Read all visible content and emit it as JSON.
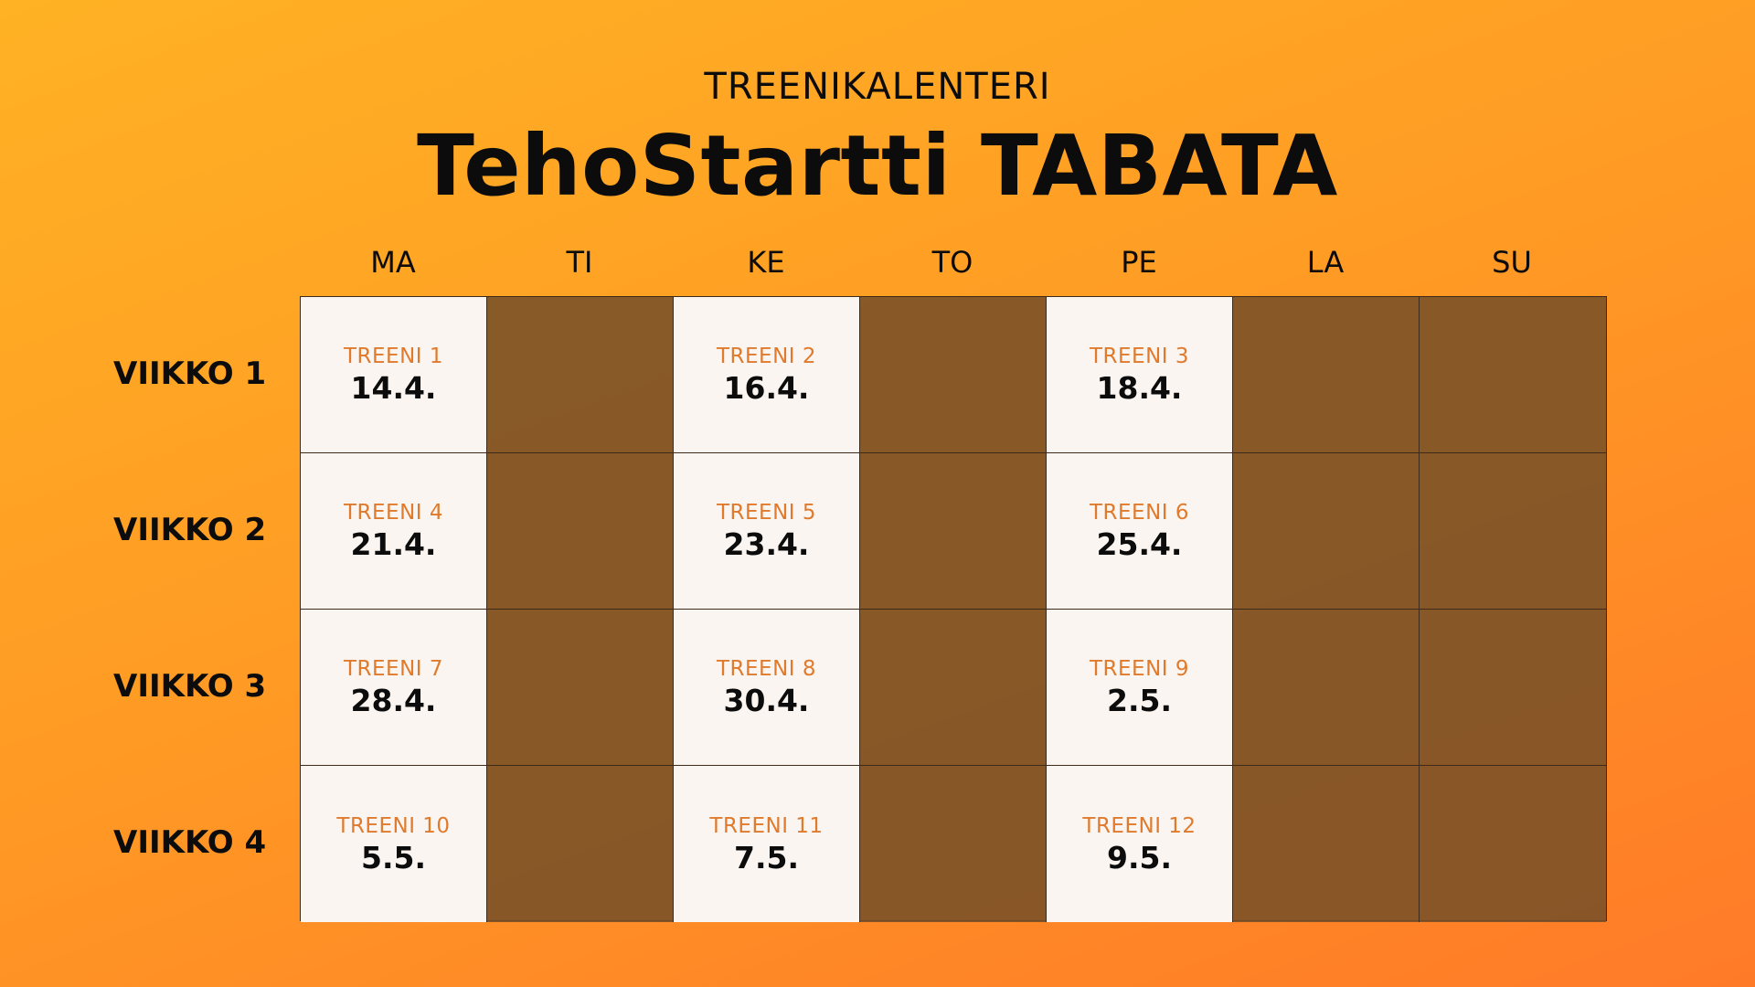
{
  "header": {
    "eyebrow": "TREENIKALENTERI",
    "title": "TehoStartti TABATA"
  },
  "days": [
    "MA",
    "TI",
    "KE",
    "TO",
    "PE",
    "LA",
    "SU"
  ],
  "weeks": [
    {
      "label": "VIIKKO 1",
      "cells": [
        {
          "label": "TREENI 1",
          "date": "14.4."
        },
        null,
        {
          "label": "TREENI 2",
          "date": "16.4."
        },
        null,
        {
          "label": "TREENI 3",
          "date": "18.4."
        },
        null,
        null
      ]
    },
    {
      "label": "VIIKKO 2",
      "cells": [
        {
          "label": "TREENI 4",
          "date": "21.4."
        },
        null,
        {
          "label": "TREENI 5",
          "date": "23.4."
        },
        null,
        {
          "label": "TREENI 6",
          "date": "25.4."
        },
        null,
        null
      ]
    },
    {
      "label": "VIIKKO 3",
      "cells": [
        {
          "label": "TREENI 7",
          "date": "28.4."
        },
        null,
        {
          "label": "TREENI 8",
          "date": "30.4."
        },
        null,
        {
          "label": "TREENI 9",
          "date": "2.5."
        },
        null,
        null
      ]
    },
    {
      "label": "VIIKKO 4",
      "cells": [
        {
          "label": "TREENI 10",
          "date": "5.5."
        },
        null,
        {
          "label": "TREENI 11",
          "date": "7.5."
        },
        null,
        {
          "label": "TREENI 12",
          "date": "9.5."
        },
        null,
        null
      ]
    }
  ],
  "colors": {
    "background_start": "#ffb224",
    "background_end": "#ff7a28",
    "workout_cell": "#faf5f0",
    "rest_cell": "#8a5a30",
    "workout_label": "#e07a2c",
    "text": "#0c0c0c"
  }
}
